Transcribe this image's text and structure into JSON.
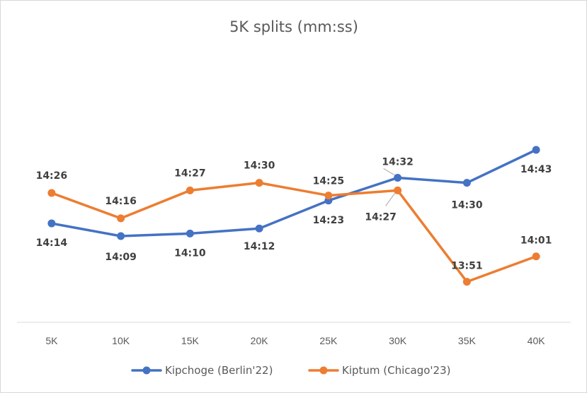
{
  "chart_data": {
    "type": "line",
    "title": "5K splits (mm:ss)",
    "categories": [
      "5K",
      "10K",
      "15K",
      "20K",
      "25K",
      "30K",
      "35K",
      "40K"
    ],
    "unit": "seconds",
    "ylim": [
      815,
      900
    ],
    "grid": false,
    "legend_position": "bottom",
    "series": [
      {
        "name": "Kipchoge (Berlin'22)",
        "color": "#4472C4",
        "values": [
          854,
          849,
          850,
          852,
          863,
          872,
          870,
          883
        ],
        "labels": [
          "14:14",
          "14:09",
          "14:10",
          "14:12",
          "14:23",
          "14:32",
          "14:30",
          "14:43"
        ]
      },
      {
        "name": "Kiptum (Chicago'23)",
        "color": "#ED7D31",
        "values": [
          866,
          856,
          867,
          870,
          865,
          867,
          831,
          841
        ],
        "labels": [
          "14:26",
          "14:16",
          "14:27",
          "14:30",
          "14:25",
          "14:27",
          "13:51",
          "14:01"
        ]
      }
    ]
  }
}
